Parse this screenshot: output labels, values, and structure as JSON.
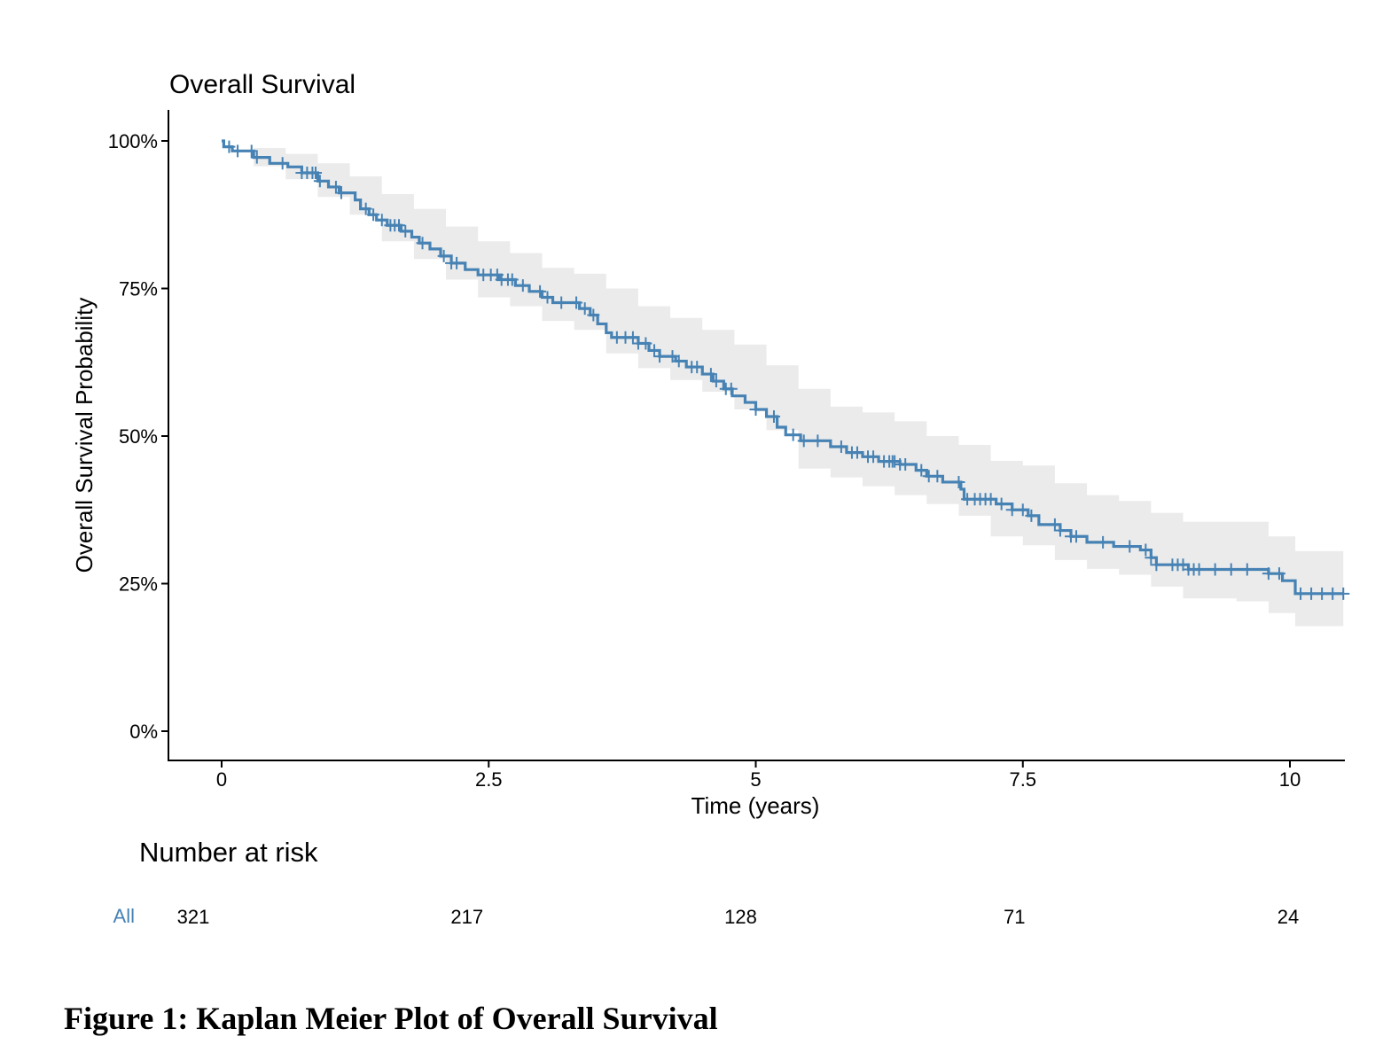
{
  "chart_data": {
    "type": "line",
    "title": "Overall Survival",
    "xlabel": "Time (years)",
    "ylabel": "Overall Survival Probability",
    "xlim": [
      -0.25,
      10.5
    ],
    "ylim": [
      -0.05,
      1.05
    ],
    "x_ticks": [
      0,
      2.5,
      5,
      7.5,
      10
    ],
    "x_tick_labels": [
      "0",
      "2.5",
      "5",
      "7.5",
      "10"
    ],
    "y_ticks": [
      0,
      0.25,
      0.5,
      0.75,
      1.0
    ],
    "y_tick_labels": [
      "0%",
      "25%",
      "50%",
      "75%",
      "100%"
    ],
    "grid": false,
    "series": [
      {
        "name": "All",
        "color": "#4682B4",
        "ci_color": "#EBEBEB",
        "steps": [
          [
            0,
            1.0
          ],
          [
            0.02,
            0.99
          ],
          [
            0.1,
            0.983
          ],
          [
            0.3,
            0.972
          ],
          [
            0.45,
            0.962
          ],
          [
            0.62,
            0.956
          ],
          [
            0.75,
            0.946
          ],
          [
            0.9,
            0.932
          ],
          [
            1.0,
            0.922
          ],
          [
            1.1,
            0.912
          ],
          [
            1.25,
            0.9
          ],
          [
            1.3,
            0.885
          ],
          [
            1.38,
            0.875
          ],
          [
            1.45,
            0.866
          ],
          [
            1.55,
            0.857
          ],
          [
            1.68,
            0.847
          ],
          [
            1.78,
            0.837
          ],
          [
            1.85,
            0.827
          ],
          [
            1.95,
            0.817
          ],
          [
            2.05,
            0.805
          ],
          [
            2.15,
            0.793
          ],
          [
            2.28,
            0.782
          ],
          [
            2.4,
            0.773
          ],
          [
            2.6,
            0.765
          ],
          [
            2.75,
            0.755
          ],
          [
            2.88,
            0.745
          ],
          [
            3.0,
            0.735
          ],
          [
            3.1,
            0.726
          ],
          [
            3.35,
            0.716
          ],
          [
            3.45,
            0.705
          ],
          [
            3.52,
            0.69
          ],
          [
            3.6,
            0.675
          ],
          [
            3.65,
            0.667
          ],
          [
            3.9,
            0.657
          ],
          [
            4.0,
            0.645
          ],
          [
            4.1,
            0.635
          ],
          [
            4.25,
            0.627
          ],
          [
            4.35,
            0.617
          ],
          [
            4.5,
            0.605
          ],
          [
            4.6,
            0.593
          ],
          [
            4.7,
            0.58
          ],
          [
            4.78,
            0.568
          ],
          [
            4.9,
            0.557
          ],
          [
            5.0,
            0.545
          ],
          [
            5.1,
            0.533
          ],
          [
            5.2,
            0.515
          ],
          [
            5.28,
            0.502
          ],
          [
            5.42,
            0.492
          ],
          [
            5.7,
            0.482
          ],
          [
            5.85,
            0.472
          ],
          [
            6.0,
            0.465
          ],
          [
            6.15,
            0.457
          ],
          [
            6.35,
            0.452
          ],
          [
            6.5,
            0.442
          ],
          [
            6.6,
            0.432
          ],
          [
            6.75,
            0.422
          ],
          [
            6.92,
            0.41
          ],
          [
            6.95,
            0.393
          ],
          [
            7.25,
            0.385
          ],
          [
            7.4,
            0.375
          ],
          [
            7.55,
            0.365
          ],
          [
            7.65,
            0.35
          ],
          [
            7.85,
            0.34
          ],
          [
            7.95,
            0.33
          ],
          [
            8.1,
            0.32
          ],
          [
            8.35,
            0.313
          ],
          [
            8.6,
            0.307
          ],
          [
            8.7,
            0.294
          ],
          [
            8.75,
            0.282
          ],
          [
            9.05,
            0.274
          ],
          [
            9.8,
            0.267
          ],
          [
            9.93,
            0.255
          ],
          [
            10.05,
            0.233
          ],
          [
            10.5,
            0.233
          ]
        ],
        "ci_upper": [
          [
            0,
            1.0
          ],
          [
            0.3,
            0.988
          ],
          [
            0.6,
            0.978
          ],
          [
            0.9,
            0.962
          ],
          [
            1.2,
            0.94
          ],
          [
            1.5,
            0.91
          ],
          [
            1.8,
            0.885
          ],
          [
            2.1,
            0.855
          ],
          [
            2.4,
            0.83
          ],
          [
            2.7,
            0.81
          ],
          [
            3.0,
            0.785
          ],
          [
            3.3,
            0.775
          ],
          [
            3.6,
            0.75
          ],
          [
            3.9,
            0.72
          ],
          [
            4.2,
            0.7
          ],
          [
            4.5,
            0.68
          ],
          [
            4.8,
            0.655
          ],
          [
            5.1,
            0.62
          ],
          [
            5.4,
            0.58
          ],
          [
            5.7,
            0.55
          ],
          [
            6.0,
            0.54
          ],
          [
            6.3,
            0.525
          ],
          [
            6.6,
            0.5
          ],
          [
            6.9,
            0.485
          ],
          [
            7.2,
            0.458
          ],
          [
            7.5,
            0.45
          ],
          [
            7.8,
            0.42
          ],
          [
            8.1,
            0.4
          ],
          [
            8.4,
            0.39
          ],
          [
            8.7,
            0.37
          ],
          [
            9.0,
            0.355
          ],
          [
            9.5,
            0.355
          ],
          [
            9.8,
            0.33
          ],
          [
            10.05,
            0.305
          ],
          [
            10.5,
            0.305
          ]
        ],
        "ci_lower": [
          [
            0,
            1.0
          ],
          [
            0.3,
            0.957
          ],
          [
            0.6,
            0.935
          ],
          [
            0.9,
            0.905
          ],
          [
            1.2,
            0.875
          ],
          [
            1.5,
            0.83
          ],
          [
            1.8,
            0.8
          ],
          [
            2.1,
            0.765
          ],
          [
            2.4,
            0.735
          ],
          [
            2.7,
            0.72
          ],
          [
            3.0,
            0.695
          ],
          [
            3.3,
            0.68
          ],
          [
            3.6,
            0.64
          ],
          [
            3.9,
            0.615
          ],
          [
            4.2,
            0.595
          ],
          [
            4.5,
            0.575
          ],
          [
            4.8,
            0.545
          ],
          [
            5.1,
            0.51
          ],
          [
            5.4,
            0.445
          ],
          [
            5.7,
            0.43
          ],
          [
            6.0,
            0.415
          ],
          [
            6.3,
            0.4
          ],
          [
            6.6,
            0.385
          ],
          [
            6.9,
            0.365
          ],
          [
            7.2,
            0.33
          ],
          [
            7.5,
            0.315
          ],
          [
            7.8,
            0.29
          ],
          [
            8.1,
            0.275
          ],
          [
            8.4,
            0.265
          ],
          [
            8.7,
            0.245
          ],
          [
            9.0,
            0.225
          ],
          [
            9.5,
            0.22
          ],
          [
            9.8,
            0.2
          ],
          [
            10.05,
            0.178
          ],
          [
            10.5,
            0.178
          ]
        ],
        "censored_times": [
          0.07,
          0.15,
          0.28,
          0.33,
          0.57,
          0.75,
          0.8,
          0.85,
          0.88,
          0.92,
          1.07,
          1.12,
          1.35,
          1.42,
          1.5,
          1.58,
          1.62,
          1.66,
          1.72,
          1.88,
          2.08,
          2.15,
          2.2,
          2.45,
          2.52,
          2.58,
          2.62,
          2.68,
          2.72,
          2.82,
          2.98,
          3.05,
          3.18,
          3.32,
          3.4,
          3.48,
          3.7,
          3.78,
          3.85,
          3.9,
          3.97,
          4.05,
          4.1,
          4.22,
          4.28,
          4.4,
          4.45,
          4.58,
          4.63,
          4.72,
          4.77,
          5.0,
          5.17,
          5.35,
          5.45,
          5.58,
          5.8,
          5.9,
          5.95,
          6.05,
          6.1,
          6.2,
          6.25,
          6.28,
          6.3,
          6.35,
          6.4,
          6.55,
          6.62,
          6.7,
          6.9,
          6.98,
          7.05,
          7.1,
          7.15,
          7.2,
          7.3,
          7.4,
          7.5,
          7.58,
          7.8,
          7.85,
          7.95,
          8.0,
          8.25,
          8.5,
          8.65,
          8.7,
          8.75,
          8.9,
          8.95,
          9.0,
          9.05,
          9.1,
          9.15,
          9.3,
          9.45,
          9.6,
          9.8,
          9.9,
          10.1,
          10.2,
          10.3,
          10.4,
          10.5
        ]
      }
    ],
    "risk_table": {
      "title": "Number at risk",
      "strata": [
        {
          "label": "All",
          "color": "#4682B4",
          "times": [
            0,
            2.5,
            5,
            7.5,
            10
          ],
          "values": [
            "321",
            "217",
            "128",
            "71",
            "24"
          ]
        }
      ]
    }
  },
  "caption": "Figure 1: Kaplan Meier Plot of Overall Survival"
}
